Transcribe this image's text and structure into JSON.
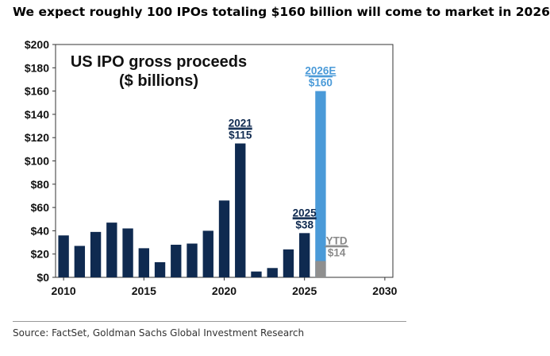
{
  "headline": "We expect roughly 100 IPOs totaling $160 billion will come to market in 2026",
  "source": "Source: FactSet, Goldman Sachs Global Investment Research",
  "chart_data": {
    "type": "bar",
    "title_line1": "US IPO gross proceeds",
    "title_line2": "($ billions)",
    "x_ticks": [
      "2010",
      "2015",
      "2020",
      "2025",
      "2030"
    ],
    "y_ticks": [
      "$0",
      "$20",
      "$40",
      "$60",
      "$80",
      "$100",
      "$120",
      "$140",
      "$160",
      "$180",
      "$200"
    ],
    "ylim": [
      0,
      200
    ],
    "xlim": [
      2009.5,
      2030.5
    ],
    "grid": false,
    "series": [
      {
        "values": [
          {
            "x": 2010,
            "y": 36
          },
          {
            "x": 2011,
            "y": 27
          },
          {
            "x": 2012,
            "y": 39
          },
          {
            "x": 2013,
            "y": 47
          },
          {
            "x": 2014,
            "y": 42
          },
          {
            "x": 2015,
            "y": 25
          },
          {
            "x": 2016,
            "y": 13
          },
          {
            "x": 2017,
            "y": 28
          },
          {
            "x": 2018,
            "y": 29
          },
          {
            "x": 2019,
            "y": 40
          },
          {
            "x": 2020,
            "y": 66
          },
          {
            "x": 2021,
            "y": 115
          },
          {
            "x": 2022,
            "y": 5
          },
          {
            "x": 2023,
            "y": 8
          },
          {
            "x": 2024,
            "y": 24
          },
          {
            "x": 2025,
            "y": 38
          }
        ]
      },
      {
        "values": [
          {
            "x": 2026,
            "y": 160
          }
        ]
      },
      {
        "values": [
          {
            "x": 2026,
            "y": 14
          }
        ]
      }
    ],
    "annotations": [
      {
        "line1": "2021",
        "line2": "$115",
        "x": 2021,
        "y": 115,
        "color": "#0f2a50"
      },
      {
        "line1": "2025",
        "line2": "$38",
        "x": 2025,
        "y": 38,
        "color": "#0f2a50"
      },
      {
        "line1": "2026E",
        "line2": "$160",
        "x": 2026,
        "y": 160,
        "color": "#4a9ad8"
      },
      {
        "line1": "YTD",
        "line2": "$14",
        "x": 2027,
        "y": 14,
        "color": "#8a8a8a"
      }
    ],
    "colors": {
      "historical": "#0f2a50",
      "estimate": "#4a9ad8",
      "ytd": "#8f8f8f"
    }
  }
}
